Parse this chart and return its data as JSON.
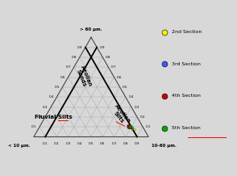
{
  "bg_color": "#d8d8d8",
  "grid_color": "#aaaaaa",
  "outer_triangle_color": "#444444",
  "corner_labels": [
    "> 60 μm.",
    "10-60 μm.",
    "< 10 μm."
  ],
  "tick_values": [
    0.1,
    0.2,
    0.3,
    0.4,
    0.5,
    0.6,
    0.7,
    0.8,
    0.9
  ],
  "data_points": {
    "2nd_section": {
      "color": "#ffee00",
      "points": [
        [
          0.08,
          0.84,
          0.08
        ]
      ]
    },
    "3rd_section": {
      "color": "#4455ff",
      "points": [
        [
          0.1,
          0.78,
          0.12
        ],
        [
          0.11,
          0.77,
          0.12
        ],
        [
          0.12,
          0.76,
          0.12
        ],
        [
          0.1,
          0.79,
          0.11
        ],
        [
          0.09,
          0.8,
          0.11
        ],
        [
          0.11,
          0.78,
          0.11
        ],
        [
          0.1,
          0.77,
          0.13
        ],
        [
          0.09,
          0.79,
          0.12
        ],
        [
          0.12,
          0.77,
          0.11
        ],
        [
          0.11,
          0.76,
          0.13
        ],
        [
          0.1,
          0.78,
          0.12
        ]
      ]
    },
    "4th_section": {
      "color": "#cc0000",
      "points": [
        [
          0.1,
          0.78,
          0.12
        ],
        [
          0.11,
          0.77,
          0.12
        ],
        [
          0.09,
          0.79,
          0.12
        ],
        [
          0.12,
          0.76,
          0.12
        ],
        [
          0.1,
          0.77,
          0.13
        ],
        [
          0.11,
          0.79,
          0.1
        ],
        [
          0.09,
          0.78,
          0.13
        ]
      ]
    },
    "5th_section": {
      "color": "#00aa00",
      "points": [
        [
          0.1,
          0.8,
          0.1
        ],
        [
          0.09,
          0.81,
          0.1
        ],
        [
          0.11,
          0.79,
          0.1
        ],
        [
          0.08,
          0.82,
          0.1
        ],
        [
          0.1,
          0.79,
          0.11
        ]
      ]
    }
  },
  "legend_labels": [
    "2nd Section",
    "3rd Section",
    "4th Section",
    "5th Section"
  ],
  "legend_colors": [
    "#ffee00",
    "#4455ff",
    "#cc0000",
    "#00aa00"
  ]
}
